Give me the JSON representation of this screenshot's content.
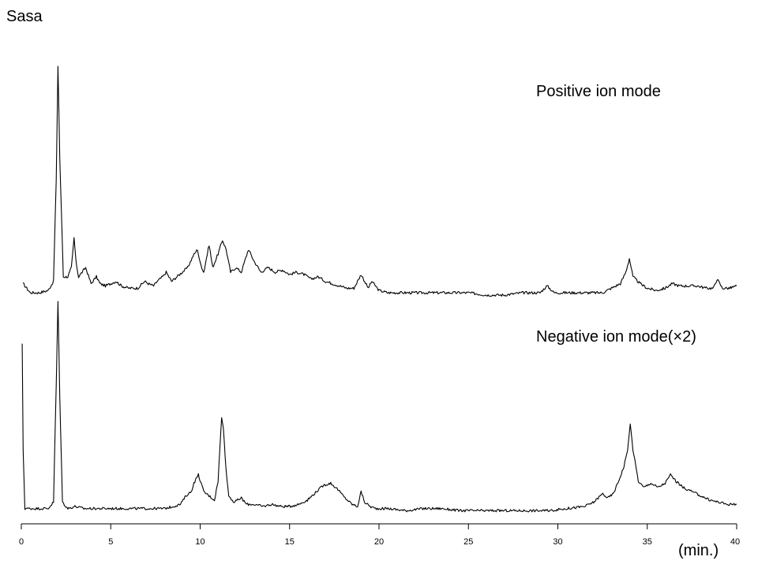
{
  "chart_data": {
    "type": "line",
    "title": "Sasa",
    "xlabel": "(min.)",
    "xlim": [
      0,
      40
    ],
    "x_ticks": [
      "0",
      "5",
      "10",
      "15",
      "20",
      "25",
      "30",
      "35",
      "40"
    ],
    "grid": false,
    "series": [
      {
        "name": "Positive ion mode",
        "color": "#000000",
        "x": [
          0.1,
          0.5,
          1.0,
          1.5,
          1.8,
          1.95,
          2.05,
          2.15,
          2.35,
          2.6,
          2.8,
          2.95,
          3.05,
          3.2,
          3.4,
          3.6,
          3.9,
          4.2,
          4.4,
          4.7,
          5.0,
          5.3,
          5.6,
          6.0,
          6.5,
          6.9,
          7.1,
          7.4,
          7.6,
          7.9,
          8.1,
          8.4,
          8.7,
          9.0,
          9.3,
          9.6,
          9.85,
          10.0,
          10.2,
          10.5,
          10.7,
          11.0,
          11.25,
          11.45,
          11.7,
          12.0,
          12.3,
          12.7,
          13.0,
          13.4,
          13.8,
          14.2,
          14.6,
          15.0,
          15.4,
          15.8,
          16.2,
          16.6,
          17.0,
          17.4,
          17.8,
          18.2,
          18.6,
          19.0,
          19.2,
          19.4,
          19.6,
          20.0,
          20.5,
          21.0,
          22.0,
          23.0,
          24.0,
          25.0,
          26.0,
          27.0,
          28.0,
          29.0,
          29.4,
          29.8,
          30.5,
          31.5,
          32.5,
          33.0,
          33.5,
          33.8,
          34.0,
          34.2,
          34.6,
          35.0,
          35.5,
          36.0,
          36.4,
          36.8,
          37.3,
          37.8,
          38.3,
          38.7,
          38.9,
          39.2,
          39.6,
          40.0
        ],
        "y": [
          0.05,
          0.01,
          0.01,
          0.02,
          0.06,
          0.5,
          1.0,
          0.6,
          0.08,
          0.08,
          0.12,
          0.25,
          0.15,
          0.08,
          0.1,
          0.12,
          0.05,
          0.08,
          0.05,
          0.04,
          0.05,
          0.06,
          0.04,
          0.03,
          0.03,
          0.06,
          0.05,
          0.04,
          0.06,
          0.08,
          0.1,
          0.06,
          0.08,
          0.1,
          0.12,
          0.17,
          0.2,
          0.14,
          0.1,
          0.22,
          0.12,
          0.18,
          0.24,
          0.2,
          0.1,
          0.12,
          0.1,
          0.2,
          0.15,
          0.1,
          0.12,
          0.1,
          0.11,
          0.09,
          0.1,
          0.09,
          0.07,
          0.08,
          0.06,
          0.05,
          0.04,
          0.03,
          0.03,
          0.09,
          0.06,
          0.03,
          0.06,
          0.02,
          0.01,
          0.01,
          0.01,
          0.01,
          0.01,
          0.01,
          0.0,
          0.0,
          0.01,
          0.01,
          0.04,
          0.01,
          0.01,
          0.01,
          0.01,
          0.03,
          0.05,
          0.1,
          0.16,
          0.08,
          0.05,
          0.03,
          0.02,
          0.03,
          0.05,
          0.04,
          0.04,
          0.04,
          0.03,
          0.03,
          0.07,
          0.03,
          0.03,
          0.04
        ]
      },
      {
        "name": "Negative ion mode(×2)",
        "color": "#000000",
        "x": [
          0.05,
          0.1,
          0.2,
          0.5,
          1.0,
          1.5,
          1.8,
          1.95,
          2.05,
          2.15,
          2.3,
          2.6,
          3.0,
          3.5,
          4.0,
          5.0,
          6.0,
          7.0,
          8.0,
          8.5,
          8.9,
          9.2,
          9.5,
          9.65,
          9.9,
          10.2,
          10.8,
          11.0,
          11.2,
          11.3,
          11.45,
          11.6,
          11.9,
          12.3,
          12.6,
          13.0,
          13.5,
          14.0,
          14.5,
          15.0,
          15.5,
          16.0,
          16.5,
          16.9,
          17.3,
          17.7,
          18.1,
          18.5,
          18.8,
          19.0,
          19.2,
          19.5,
          19.8,
          20.5,
          21.5,
          22.5,
          23.5,
          24.5,
          25.5,
          26.5,
          27.5,
          28.5,
          29.5,
          30.5,
          31.5,
          32.0,
          32.5,
          32.8,
          33.1,
          33.4,
          33.7,
          33.9,
          34.05,
          34.2,
          34.5,
          34.8,
          35.2,
          35.6,
          36.0,
          36.3,
          36.6,
          37.0,
          37.5,
          38.0,
          38.5,
          39.0,
          39.5,
          40.0
        ],
        "y": [
          0.8,
          0.3,
          0.02,
          0.02,
          0.02,
          0.02,
          0.05,
          0.6,
          1.0,
          0.55,
          0.05,
          0.02,
          0.03,
          0.02,
          0.02,
          0.02,
          0.02,
          0.02,
          0.02,
          0.03,
          0.04,
          0.08,
          0.1,
          0.14,
          0.18,
          0.1,
          0.06,
          0.15,
          0.45,
          0.4,
          0.2,
          0.08,
          0.05,
          0.07,
          0.04,
          0.04,
          0.03,
          0.04,
          0.03,
          0.03,
          0.04,
          0.06,
          0.1,
          0.13,
          0.14,
          0.11,
          0.07,
          0.04,
          0.03,
          0.1,
          0.05,
          0.03,
          0.02,
          0.02,
          0.01,
          0.02,
          0.02,
          0.01,
          0.01,
          0.01,
          0.01,
          0.01,
          0.01,
          0.02,
          0.03,
          0.05,
          0.09,
          0.07,
          0.09,
          0.15,
          0.22,
          0.3,
          0.42,
          0.3,
          0.15,
          0.12,
          0.14,
          0.12,
          0.14,
          0.18,
          0.15,
          0.12,
          0.1,
          0.08,
          0.06,
          0.05,
          0.04,
          0.04
        ]
      }
    ]
  }
}
